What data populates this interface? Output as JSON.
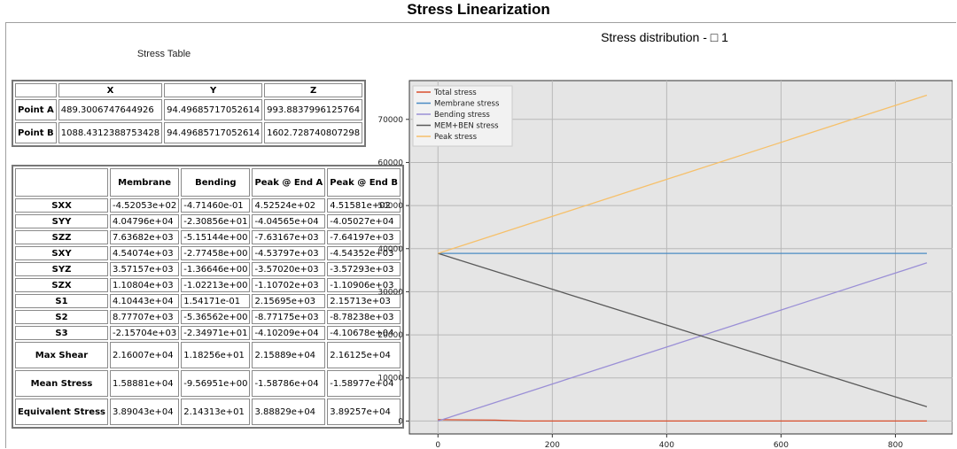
{
  "page_title": "Stress Linearization",
  "table_caption": "Stress Table",
  "points_table": {
    "columns": [
      "X",
      "Y",
      "Z"
    ],
    "rows": [
      {
        "label": "Point A",
        "values": [
          "489.3006747644926",
          "94.49685717052614",
          "993.8837996125764"
        ]
      },
      {
        "label": "Point B",
        "values": [
          "1088.4312388753428",
          "94.49685717052614",
          "1602.728740807298"
        ]
      }
    ]
  },
  "stress_table": {
    "columns": [
      "Membrane",
      "Bending",
      "Peak @ End A",
      "Peak @ End B"
    ],
    "rows": [
      {
        "label": "SXX",
        "values": [
          "-4.52053e+02",
          "-4.71460e-01",
          "4.52524e+02",
          "4.51581e+02"
        ]
      },
      {
        "label": "SYY",
        "values": [
          "4.04796e+04",
          "-2.30856e+01",
          "-4.04565e+04",
          "-4.05027e+04"
        ]
      },
      {
        "label": "SZZ",
        "values": [
          "7.63682e+03",
          "-5.15144e+00",
          "-7.63167e+03",
          "-7.64197e+03"
        ]
      },
      {
        "label": "SXY",
        "values": [
          "4.54074e+03",
          "-2.77458e+00",
          "-4.53797e+03",
          "-4.54352e+03"
        ]
      },
      {
        "label": "SYZ",
        "values": [
          "3.57157e+03",
          "-1.36646e+00",
          "-3.57020e+03",
          "-3.57293e+03"
        ]
      },
      {
        "label": "SZX",
        "values": [
          "1.10804e+03",
          "-1.02213e+00",
          "-1.10702e+03",
          "-1.10906e+03"
        ]
      },
      {
        "label": "S1",
        "values": [
          "4.10443e+04",
          "1.54171e-01",
          "2.15695e+03",
          "2.15713e+03"
        ]
      },
      {
        "label": "S2",
        "values": [
          "8.77707e+03",
          "-5.36562e+00",
          "-8.77175e+03",
          "-8.78238e+03"
        ]
      },
      {
        "label": "S3",
        "values": [
          "-2.15704e+03",
          "-2.34971e+01",
          "-4.10209e+04",
          "-4.10678e+04"
        ]
      },
      {
        "label": "Max Shear",
        "values": [
          "2.16007e+04",
          "1.18256e+01",
          "2.15889e+04",
          "2.16125e+04"
        ]
      },
      {
        "label": "Mean Stress",
        "values": [
          "1.58881e+04",
          "-9.56951e+00",
          "-1.58786e+04",
          "-1.58977e+04"
        ]
      },
      {
        "label": "Equivalent Stress",
        "values": [
          "3.89043e+04",
          "2.14313e+01",
          "3.88829e+04",
          "3.89257e+04"
        ]
      }
    ]
  },
  "chart_title": "Stress distribution - □ 1",
  "chart_data": {
    "type": "line",
    "title": "Stress distribution - □ 1",
    "xlabel": "",
    "ylabel": "",
    "xlim": [
      -50,
      900
    ],
    "ylim": [
      -3000,
      79000
    ],
    "x_ticks": [
      0,
      200,
      400,
      600,
      800
    ],
    "y_ticks": [
      0,
      10000,
      20000,
      30000,
      40000,
      50000,
      60000,
      70000
    ],
    "grid": true,
    "legend_position": "top-left",
    "series": [
      {
        "name": "Total stress",
        "color": "#d9502e",
        "x": [
          0,
          100,
          150,
          855
        ],
        "y": [
          300,
          200,
          0,
          0
        ]
      },
      {
        "name": "Membrane stress",
        "color": "#4a8bc4",
        "x": [
          0,
          855
        ],
        "y": [
          38900,
          38900
        ]
      },
      {
        "name": "Bending stress",
        "color": "#9a8fd6",
        "x": [
          0,
          855
        ],
        "y": [
          0,
          36700
        ]
      },
      {
        "name": "MEM+BEN stress",
        "color": "#5a5a5a",
        "x": [
          0,
          855
        ],
        "y": [
          38900,
          3300
        ]
      },
      {
        "name": "Peak stress",
        "color": "#f6c06a",
        "x": [
          0,
          855
        ],
        "y": [
          38900,
          75600
        ]
      }
    ]
  }
}
